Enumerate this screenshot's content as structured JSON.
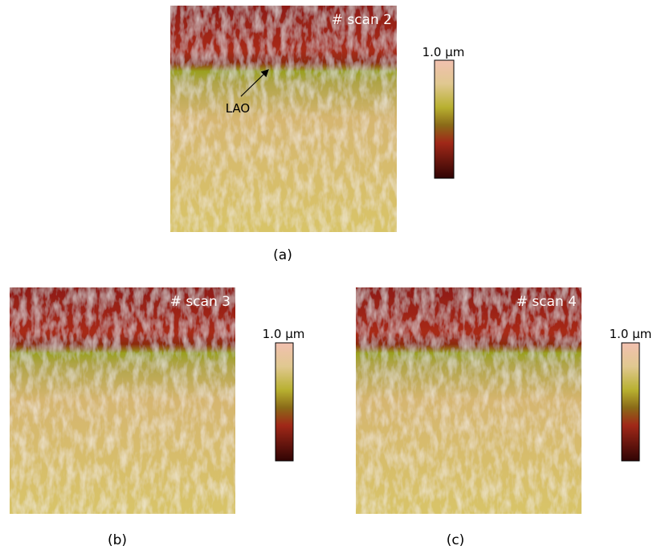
{
  "panels": [
    {
      "scan_label": "# scan 2",
      "scale_label": "1.0 µm",
      "caption": "(a)",
      "annotation": "LAO"
    },
    {
      "scan_label": "# scan 3",
      "scale_label": "1.0 µm",
      "caption": "(b)"
    },
    {
      "scan_label": "# scan 4",
      "scale_label": "1.0 µm",
      "caption": "(c)"
    }
  ]
}
